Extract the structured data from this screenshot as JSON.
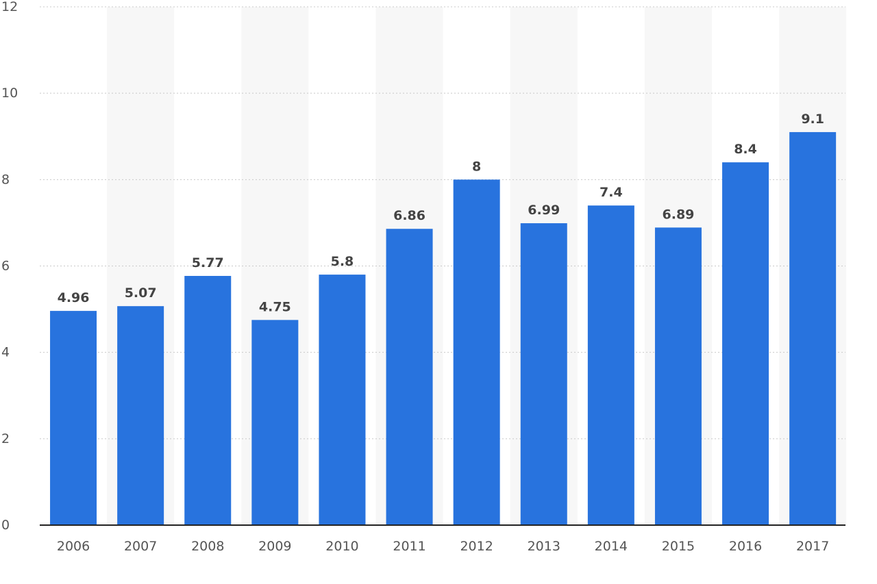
{
  "chart_data": {
    "type": "bar",
    "categories": [
      "2006",
      "2007",
      "2008",
      "2009",
      "2010",
      "2011",
      "2012",
      "2013",
      "2014",
      "2015",
      "2016",
      "2017"
    ],
    "values": [
      4.96,
      5.07,
      5.77,
      4.75,
      5.8,
      6.86,
      8,
      6.99,
      7.4,
      6.89,
      8.4,
      9.1
    ],
    "value_labels": [
      "4.96",
      "5.07",
      "5.77",
      "4.75",
      "5.8",
      "6.86",
      "8",
      "6.99",
      "7.4",
      "6.89",
      "8.4",
      "9.1"
    ],
    "y_ticks": [
      "0",
      "2",
      "4",
      "6",
      "8",
      "10",
      "12"
    ],
    "title": "",
    "xlabel": "",
    "ylabel": "",
    "ylim": [
      0,
      12
    ],
    "grid": true,
    "legend": "none",
    "bar_color": "#2873de"
  }
}
